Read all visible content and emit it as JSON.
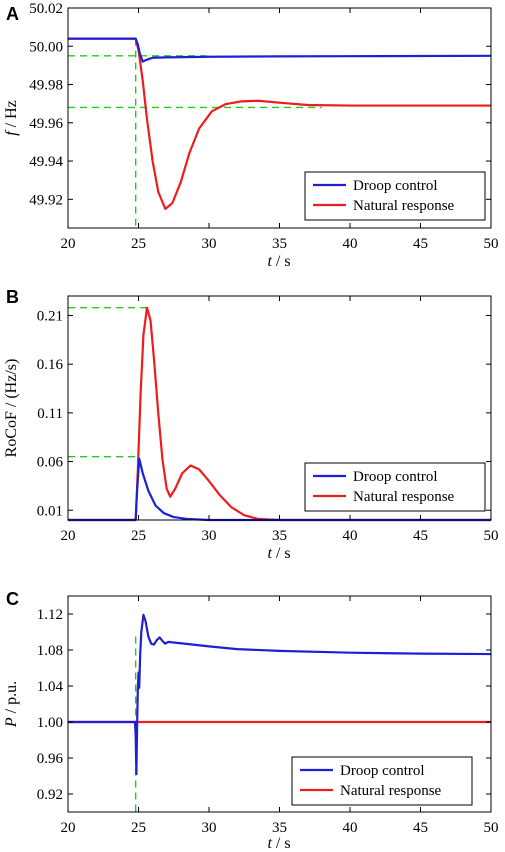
{
  "chart_data": [
    {
      "panel": "A",
      "type": "line",
      "xlabel_italic": "t",
      "xlabel_unit": " / s",
      "ylabel_italic": "f",
      "ylabel_unit": " / Hz",
      "xlim": [
        20,
        50
      ],
      "ylim": [
        49.905,
        50.02
      ],
      "x_ticks": [
        20,
        25,
        30,
        35,
        40,
        45,
        50
      ],
      "y_ticks": [
        49.92,
        49.94,
        49.96,
        49.98,
        50.0,
        50.02
      ],
      "y_tick_labels": [
        "49.92",
        "49.94",
        "49.96",
        "49.98",
        "50.00",
        "50.02"
      ],
      "legend_position": "bottom-right",
      "series": [
        {
          "name": "Droop control",
          "color": "#1f1fd6",
          "points": [
            [
              20,
              50.004
            ],
            [
              24.8,
              50.004
            ],
            [
              24.95,
              50.001
            ],
            [
              25.1,
              49.996
            ],
            [
              25.3,
              49.992
            ],
            [
              25.6,
              49.993
            ],
            [
              26.0,
              49.994
            ],
            [
              27,
              49.9942
            ],
            [
              30,
              49.9945
            ],
            [
              35,
              49.9947
            ],
            [
              40,
              49.9948
            ],
            [
              45,
              49.9949
            ],
            [
              50,
              49.995
            ]
          ]
        },
        {
          "name": "Natural response",
          "color": "#ee1c1c",
          "points": [
            [
              20,
              50.004
            ],
            [
              24.8,
              50.004
            ],
            [
              25.0,
              49.998
            ],
            [
              25.3,
              49.982
            ],
            [
              25.6,
              49.962
            ],
            [
              26.0,
              49.94
            ],
            [
              26.4,
              49.924
            ],
            [
              26.9,
              49.915
            ],
            [
              27.4,
              49.918
            ],
            [
              28.0,
              49.929
            ],
            [
              28.6,
              49.944
            ],
            [
              29.3,
              49.957
            ],
            [
              30.2,
              49.966
            ],
            [
              31.2,
              49.9698
            ],
            [
              32.3,
              49.9712
            ],
            [
              33.5,
              49.9715
            ],
            [
              35,
              49.9705
            ],
            [
              37,
              49.9693
            ],
            [
              40,
              49.969
            ],
            [
              45,
              49.969
            ],
            [
              50,
              49.969
            ]
          ]
        }
      ],
      "reference_lines": [
        {
          "from": [
            20,
            49.995
          ],
          "to": [
            30,
            49.995
          ]
        },
        {
          "from": [
            20,
            49.968
          ],
          "to": [
            38,
            49.968
          ]
        },
        {
          "from": [
            24.8,
            50.004
          ],
          "to": [
            24.8,
            49.905
          ]
        }
      ]
    },
    {
      "panel": "B",
      "type": "line",
      "xlabel_italic": "t",
      "xlabel_unit": " / s",
      "ylabel_italic": "",
      "ylabel_unit": "RoCoF / (Hz/s)",
      "xlim": [
        20,
        50
      ],
      "ylim": [
        0.0,
        0.23
      ],
      "x_ticks": [
        20,
        25,
        30,
        35,
        40,
        45,
        50
      ],
      "y_ticks": [
        0.01,
        0.06,
        0.11,
        0.16,
        0.21
      ],
      "y_tick_labels": [
        "0.01",
        "0.06",
        "0.11",
        "0.16",
        "0.21"
      ],
      "legend_position": "bottom-right",
      "series": [
        {
          "name": "Droop control",
          "color": "#1f1fd6",
          "points": [
            [
              20,
              0.0
            ],
            [
              24.8,
              0.0
            ],
            [
              24.9,
              0.03
            ],
            [
              25.05,
              0.063
            ],
            [
              25.3,
              0.048
            ],
            [
              25.7,
              0.03
            ],
            [
              26.2,
              0.015
            ],
            [
              26.8,
              0.007
            ],
            [
              27.5,
              0.003
            ],
            [
              28.5,
              0.001
            ],
            [
              30,
              0.0
            ],
            [
              50,
              0.0
            ]
          ]
        },
        {
          "name": "Natural response",
          "color": "#ee1c1c",
          "points": [
            [
              20,
              0.0
            ],
            [
              24.8,
              0.0
            ],
            [
              24.95,
              0.05
            ],
            [
              25.15,
              0.13
            ],
            [
              25.35,
              0.19
            ],
            [
              25.6,
              0.218
            ],
            [
              25.85,
              0.205
            ],
            [
              26.1,
              0.165
            ],
            [
              26.4,
              0.11
            ],
            [
              26.7,
              0.062
            ],
            [
              27.0,
              0.032
            ],
            [
              27.25,
              0.024
            ],
            [
              27.6,
              0.032
            ],
            [
              28.1,
              0.048
            ],
            [
              28.7,
              0.056
            ],
            [
              29.3,
              0.052
            ],
            [
              30.0,
              0.04
            ],
            [
              30.8,
              0.025
            ],
            [
              31.6,
              0.013
            ],
            [
              32.5,
              0.005
            ],
            [
              33.5,
              0.001
            ],
            [
              35,
              0.0
            ],
            [
              50,
              0.0
            ]
          ]
        }
      ],
      "reference_lines": [
        {
          "from": [
            20,
            0.218
          ],
          "to": [
            25.6,
            0.218
          ]
        },
        {
          "from": [
            20,
            0.065
          ],
          "to": [
            25.05,
            0.065
          ]
        }
      ]
    },
    {
      "panel": "C",
      "type": "line",
      "xlabel_italic": "t",
      "xlabel_unit": " / s",
      "ylabel_italic": "P",
      "ylabel_unit": " / p.u.",
      "xlim": [
        20,
        50
      ],
      "ylim": [
        0.9,
        1.14
      ],
      "x_ticks": [
        20,
        25,
        30,
        35,
        40,
        45,
        50
      ],
      "y_ticks": [
        0.92,
        0.96,
        1.0,
        1.04,
        1.08,
        1.12
      ],
      "y_tick_labels": [
        "0.92",
        "0.96",
        "1.00",
        "1.04",
        "1.08",
        "1.12"
      ],
      "legend_position": "bottom-right",
      "series": [
        {
          "name": "Droop control",
          "color": "#1f1fd6",
          "points": [
            [
              20,
              1.0
            ],
            [
              24.75,
              1.0
            ],
            [
              24.8,
              0.985
            ],
            [
              24.85,
              0.942
            ],
            [
              24.9,
              0.995
            ],
            [
              24.95,
              1.035
            ],
            [
              25.0,
              1.055
            ],
            [
              25.05,
              1.038
            ],
            [
              25.12,
              1.075
            ],
            [
              25.2,
              1.1
            ],
            [
              25.35,
              1.119
            ],
            [
              25.5,
              1.112
            ],
            [
              25.7,
              1.095
            ],
            [
              25.9,
              1.087
            ],
            [
              26.1,
              1.086
            ],
            [
              26.3,
              1.091
            ],
            [
              26.5,
              1.094
            ],
            [
              26.7,
              1.09
            ],
            [
              26.9,
              1.087
            ],
            [
              27.1,
              1.089
            ],
            [
              27.4,
              1.0885
            ],
            [
              28,
              1.0875
            ],
            [
              30,
              1.084
            ],
            [
              32,
              1.081
            ],
            [
              35,
              1.079
            ],
            [
              40,
              1.077
            ],
            [
              45,
              1.076
            ],
            [
              50,
              1.0755
            ]
          ]
        },
        {
          "name": "Natural response",
          "color": "#ee1c1c",
          "points": [
            [
              20,
              1.0
            ],
            [
              50,
              1.0
            ]
          ]
        }
      ],
      "reference_lines": [
        {
          "from": [
            24.8,
            1.095
          ],
          "to": [
            24.8,
            0.9
          ]
        }
      ]
    }
  ]
}
